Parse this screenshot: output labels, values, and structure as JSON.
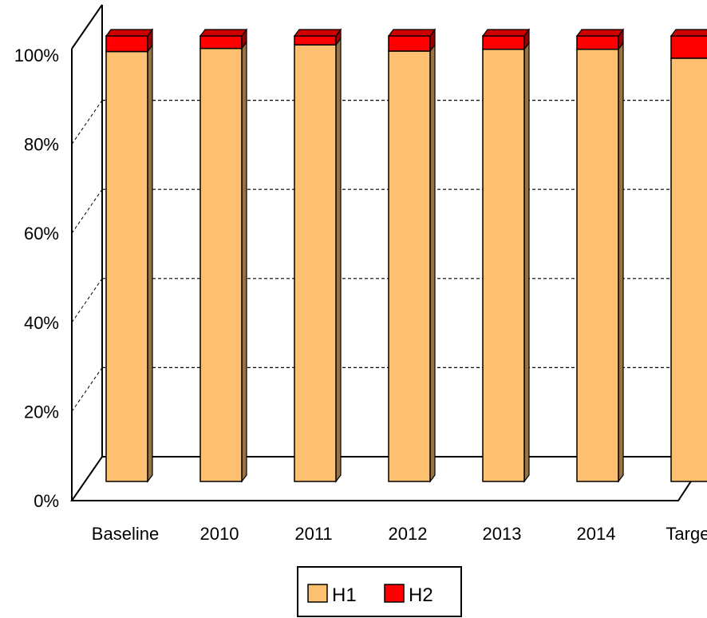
{
  "chart_data": {
    "type": "bar",
    "stacked": true,
    "percent_stacked": true,
    "three_d": true,
    "categories": [
      "Baseline",
      "2010",
      "2011",
      "2012",
      "2013",
      "2014",
      "Target"
    ],
    "series": [
      {
        "name": "H1",
        "color": "#FDC070",
        "values": [
          96.5,
          97.2,
          98,
          96.6,
          97,
          97,
          95
        ]
      },
      {
        "name": "H2",
        "color": "#FF0000",
        "values": [
          3.5,
          2.8,
          2,
          3.4,
          3,
          3,
          5
        ]
      }
    ],
    "ylim": [
      0,
      100
    ],
    "y_ticks": [
      "0%",
      "20%",
      "40%",
      "60%",
      "80%",
      "100%"
    ],
    "grid": true,
    "legend_position": "bottom"
  }
}
